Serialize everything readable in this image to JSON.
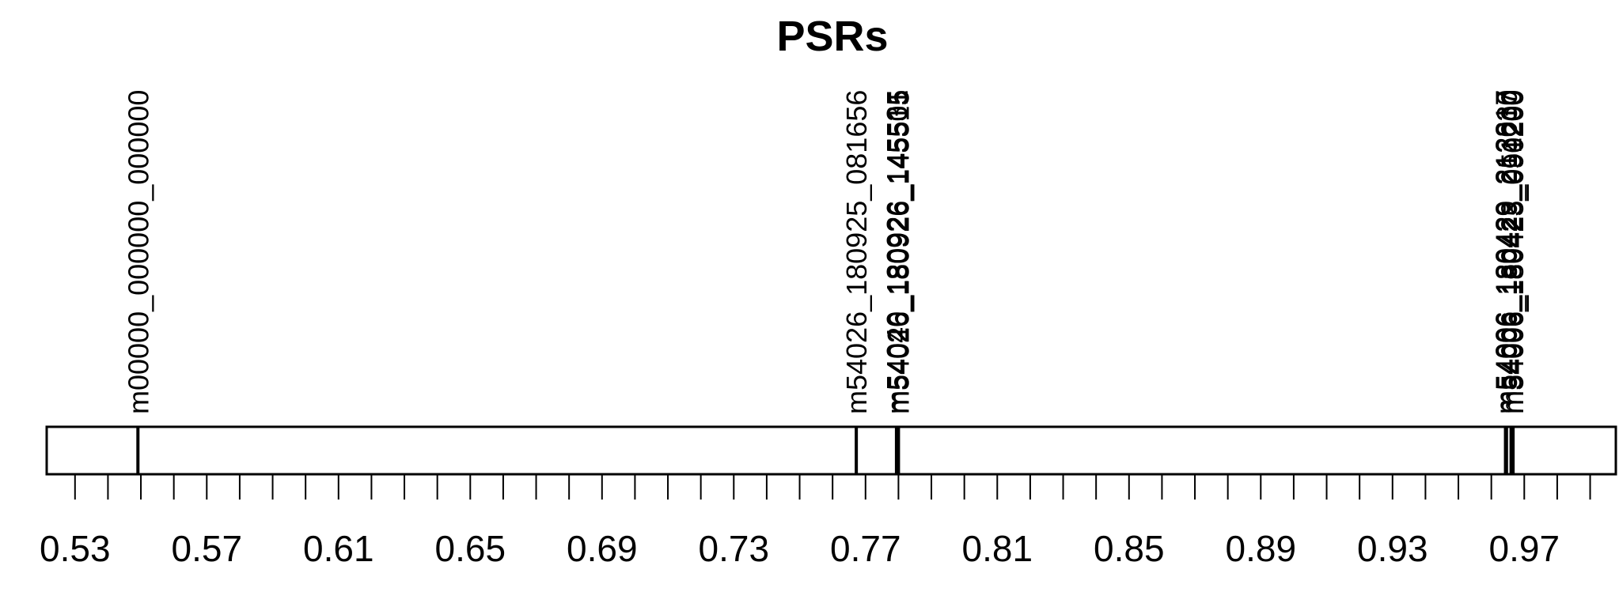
{
  "chart_data": {
    "type": "strip",
    "title": "PSRs",
    "xlabel": "",
    "ylabel": "",
    "xlim": [
      0.5214,
      0.9978
    ],
    "ticks": {
      "minor_step": 0.01,
      "labels": [
        "0.53",
        "0.57",
        "0.61",
        "0.65",
        "0.69",
        "0.73",
        "0.77",
        "0.81",
        "0.85",
        "0.89",
        "0.93",
        "0.97"
      ]
    },
    "points": [
      {
        "label": "m00000_000000_000000",
        "x": 0.5491
      },
      {
        "label": "m54026_180925_081656",
        "x": 0.7672
      },
      {
        "label": "m54040_180926_145535",
        "x": 0.7794
      },
      {
        "label": "m54026_180926_145501",
        "x": 0.7797
      },
      {
        "label": "m54026_180926_145515",
        "x": 0.78
      },
      {
        "label": "m54006_180429_212817",
        "x": 0.9643
      },
      {
        "label": "m54006_180429_213030",
        "x": 0.9646
      },
      {
        "label": "m54006_180423_051200",
        "x": 0.966
      },
      {
        "label": "m54006_180425_090200",
        "x": 0.9666
      }
    ]
  }
}
